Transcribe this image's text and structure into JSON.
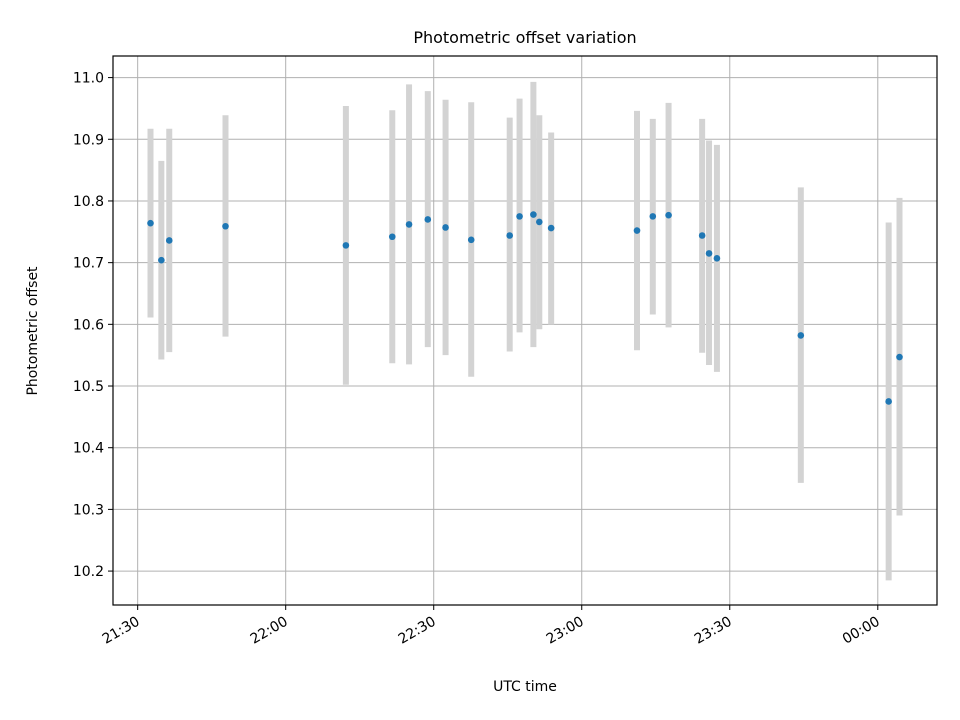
{
  "chart_data": {
    "type": "scatter",
    "title": "Photometric offset variation",
    "xlabel": "UTC time",
    "ylabel": "Photometric offset",
    "x_tick_labels": [
      "21:30",
      "22:00",
      "22:30",
      "23:00",
      "23:30",
      "00:00"
    ],
    "y_tick_labels": [
      "10.2",
      "10.3",
      "10.4",
      "10.5",
      "10.6",
      "10.7",
      "10.8",
      "10.9",
      "11.0"
    ],
    "y_ticks": [
      10.2,
      10.3,
      10.4,
      10.5,
      10.6,
      10.7,
      10.8,
      10.9,
      11.0
    ],
    "xlim": [
      "21:25",
      "00:12"
    ],
    "ylim": [
      10.145,
      11.035
    ],
    "grid": true,
    "colors": {
      "points": "#1f77b4",
      "error_bars": "#d3d3d3",
      "grid": "#b0b0b0"
    },
    "points": [
      {
        "x": "21:32:36",
        "y": 10.764,
        "ylow": 10.611,
        "yhigh": 10.917
      },
      {
        "x": "21:34:48",
        "y": 10.704,
        "ylow": 10.543,
        "yhigh": 10.865
      },
      {
        "x": "21:36:24",
        "y": 10.736,
        "ylow": 10.555,
        "yhigh": 10.917
      },
      {
        "x": "21:47:48",
        "y": 10.759,
        "ylow": 10.58,
        "yhigh": 10.939
      },
      {
        "x": "22:12:12",
        "y": 10.728,
        "ylow": 10.502,
        "yhigh": 10.954
      },
      {
        "x": "22:21:36",
        "y": 10.742,
        "ylow": 10.537,
        "yhigh": 10.947
      },
      {
        "x": "22:25:00",
        "y": 10.762,
        "ylow": 10.535,
        "yhigh": 10.989
      },
      {
        "x": "22:28:48",
        "y": 10.77,
        "ylow": 10.563,
        "yhigh": 10.978
      },
      {
        "x": "22:32:24",
        "y": 10.757,
        "ylow": 10.55,
        "yhigh": 10.964
      },
      {
        "x": "22:37:36",
        "y": 10.737,
        "ylow": 10.515,
        "yhigh": 10.96
      },
      {
        "x": "22:45:24",
        "y": 10.744,
        "ylow": 10.556,
        "yhigh": 10.935
      },
      {
        "x": "22:47:24",
        "y": 10.775,
        "ylow": 10.587,
        "yhigh": 10.966
      },
      {
        "x": "22:50:12",
        "y": 10.778,
        "ylow": 10.563,
        "yhigh": 10.993
      },
      {
        "x": "22:51:24",
        "y": 10.766,
        "ylow": 10.592,
        "yhigh": 10.939
      },
      {
        "x": "22:53:48",
        "y": 10.756,
        "ylow": 10.6,
        "yhigh": 10.911
      },
      {
        "x": "23:11:12",
        "y": 10.752,
        "ylow": 10.558,
        "yhigh": 10.946
      },
      {
        "x": "23:14:24",
        "y": 10.775,
        "ylow": 10.616,
        "yhigh": 10.933
      },
      {
        "x": "23:17:36",
        "y": 10.777,
        "ylow": 10.595,
        "yhigh": 10.959
      },
      {
        "x": "23:24:24",
        "y": 10.744,
        "ylow": 10.554,
        "yhigh": 10.933
      },
      {
        "x": "23:25:48",
        "y": 10.715,
        "ylow": 10.534,
        "yhigh": 10.898
      },
      {
        "x": "23:27:24",
        "y": 10.707,
        "ylow": 10.523,
        "yhigh": 10.891
      },
      {
        "x": "23:44:24",
        "y": 10.582,
        "ylow": 10.343,
        "yhigh": 10.822
      },
      {
        "x": "00:02:12",
        "y": 10.475,
        "ylow": 10.185,
        "yhigh": 10.765
      },
      {
        "x": "00:04:24",
        "y": 10.547,
        "ylow": 10.29,
        "yhigh": 10.805
      }
    ]
  }
}
